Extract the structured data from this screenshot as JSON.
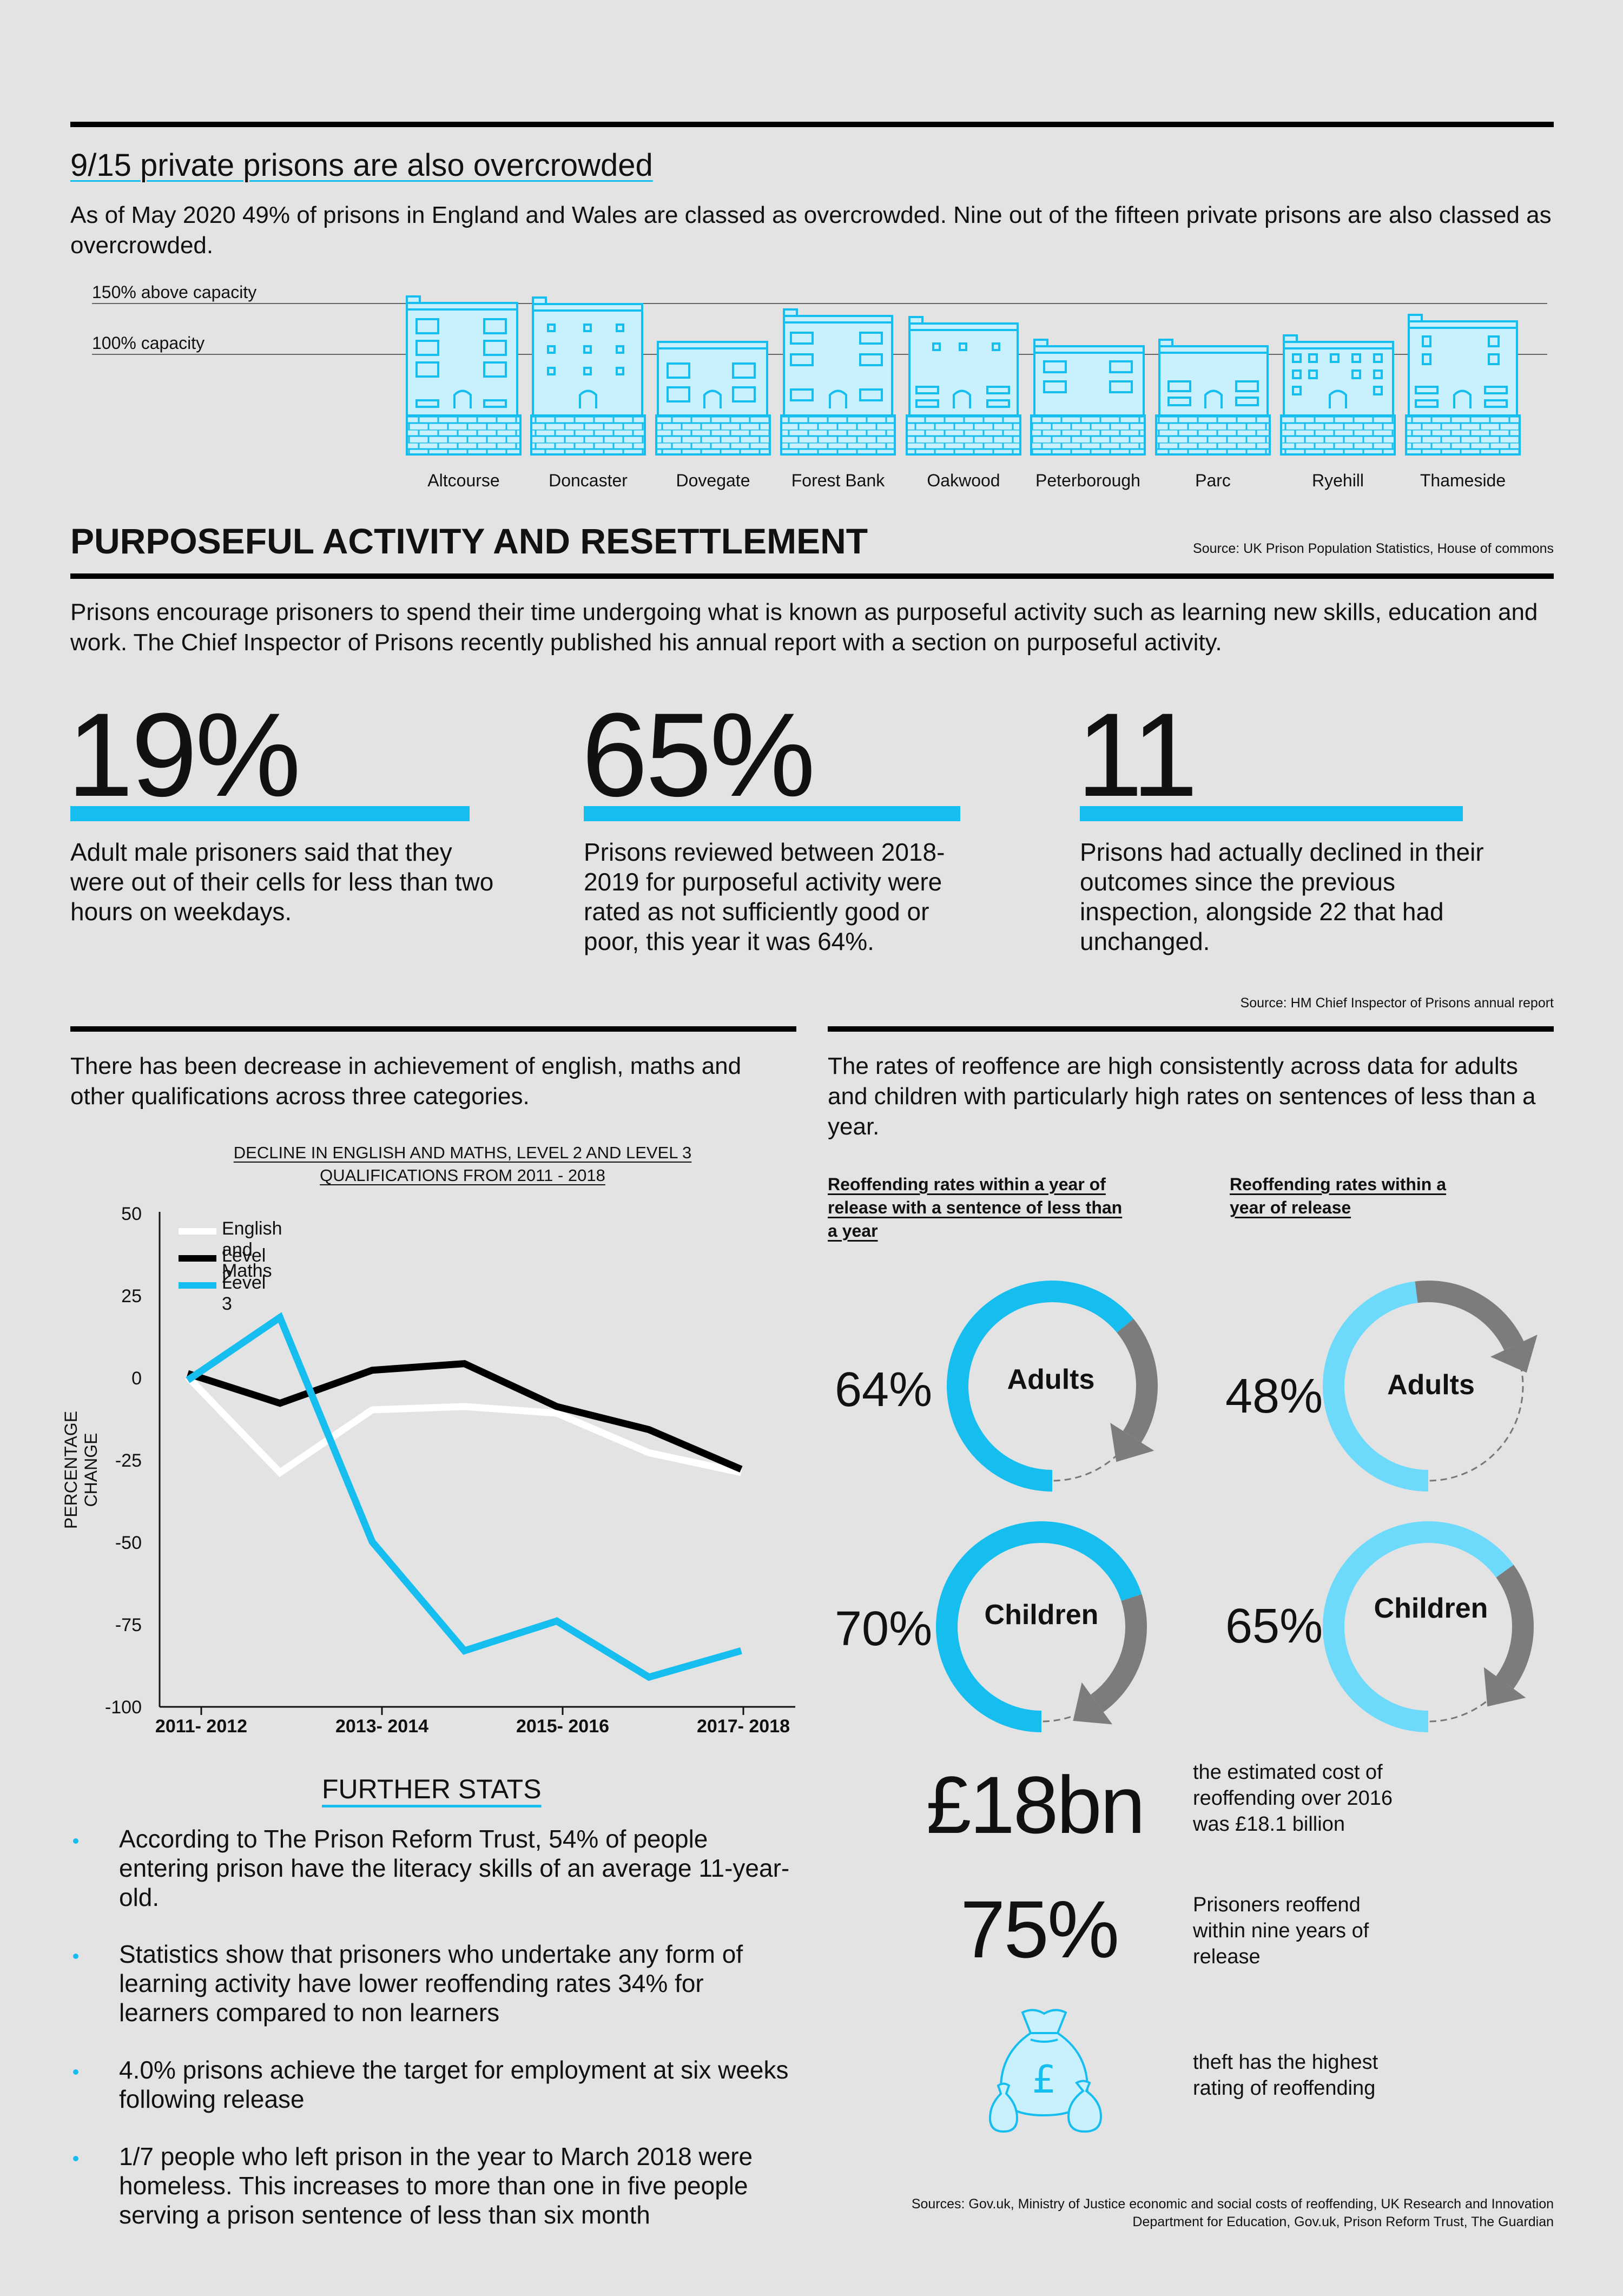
{
  "section1": {
    "title": "9/15 private prisons are also overcrowded",
    "intro": "As of May 2020 49% of prisons in England and Wales are classed as overcrowded. Nine out of the fifteen private prisons are also classed as overcrowded.",
    "label_150": "150% above capacity",
    "label_100": "100% capacity",
    "prisons": [
      "Altcourse",
      "Doncaster",
      "Dovegate",
      "Forest Bank",
      "Oakwood",
      "Peterborough",
      "Parc",
      "Ryehill",
      "Thameside"
    ]
  },
  "section2": {
    "title": "PURPOSEFUL ACTIVITY AND RESETTLEMENT",
    "source": "Source: UK Prison Population Statistics, House of commons",
    "intro": "Prisons encourage prisoners to spend their time undergoing what is known as purposeful activity such as learning new skills, education and work. The Chief Inspector of Prisons recently published his annual report with a section on purposeful activity.",
    "stats": [
      {
        "value": "19%",
        "text": "Adult male prisoners said that they were out of their cells for less than two hours on weekdays."
      },
      {
        "value": "65%",
        "text": "Prisons reviewed between 2018-2019 for purposeful activity were rated as not sufficiently good or poor, this year it was 64%."
      },
      {
        "value": "11",
        "text": "Prisons had actually declined in their outcomes since the previous inspection, alongside 22 that had unchanged."
      }
    ],
    "source2": "Source: HM Chief Inspector of Prisons annual report"
  },
  "left": {
    "intro": "There has been decrease in achievement of english, maths and other qualifications across three categories.",
    "further_title": "FURTHER STATS",
    "bullets": [
      "According to The Prison Reform Trust, 54% of people entering prison have the literacy skills of an average 11-year-old.",
      "Statistics show that prisoners who undertake any form of learning activity have lower reoffending rates 34% for learners compared to non learners",
      "4.0% prisons achieve the target for employment at six weeks following release",
      "1/7 people who left prison in the year to March 2018 were homeless. This increases to more than one in five people serving a prison sentence of less than six month"
    ]
  },
  "chart_data": {
    "type": "line",
    "title": "DECLINE IN ENGLISH AND MATHS, LEVEL 2 AND LEVEL 3 QUALIFICATIONS FROM 2011 - 2018",
    "ylabel": "PERCENTAGE CHANGE",
    "xlabel": "",
    "x_tick_labels": [
      "2011- 2012",
      "2013- 2014",
      "2015- 2016",
      "2017- 2018"
    ],
    "y_ticks": [
      "50",
      "25",
      "0",
      "-25",
      "-50",
      "-75",
      "-100"
    ],
    "ylim": [
      -100,
      50
    ],
    "x": [
      2011.5,
      2012.5,
      2013.5,
      2014.5,
      2015.5,
      2016.5,
      2017.5
    ],
    "series": [
      {
        "name": "English and Maths",
        "color": "#ffffff",
        "values": [
          0,
          -29,
          -10,
          -9,
          -11,
          -23,
          -29
        ]
      },
      {
        "name": "Level 2",
        "color": "#000000",
        "values": [
          1,
          -8,
          2,
          4,
          -9,
          -16,
          -28
        ]
      },
      {
        "name": "Level 3",
        "color": "#16bdef",
        "values": [
          -1,
          18,
          -50,
          -83,
          -74,
          -91,
          -83
        ]
      }
    ],
    "legend": "top-left",
    "grid": false
  },
  "right": {
    "intro": "The rates of reoffence are high consistently across data for adults and children with particularly high rates on sentences of less than a year.",
    "head_left": "Reoffending rates within a year of release with a sentence of less than a year",
    "head_right": "Reoffending rates within a year of release",
    "donuts": [
      {
        "pct": "64%",
        "label": "Adults",
        "fraction": 0.64,
        "color": "#16bdef"
      },
      {
        "pct": "48%",
        "label": "Adults",
        "fraction": 0.48,
        "color": "#6dd9fb"
      },
      {
        "pct": "70%",
        "label": "Children",
        "fraction": 0.7,
        "color": "#16bdef"
      },
      {
        "pct": "65%",
        "label": "Children",
        "fraction": 0.65,
        "color": "#6dd9fb"
      }
    ],
    "cost_value": "£18bn",
    "cost_text": "the estimated cost of reoffending over 2016 was £18.1 billion",
    "reoffend_value": "75%",
    "reoffend_text": "Prisoners reoffend within nine years of release",
    "theft_text": "theft has the highest rating of reoffending",
    "moneybag_symbol": "£",
    "sources": "Sources: Gov.uk, Ministry of Justice economic and social costs of reoffending, UK Research and Innovation Department for Education, Gov.uk, Prison Reform Trust, The Guardian"
  },
  "colors": {
    "accent": "#16bdef",
    "light_accent": "#6dd9fb",
    "building_fill": "#c8f1fd",
    "background": "#e3e3e3"
  }
}
